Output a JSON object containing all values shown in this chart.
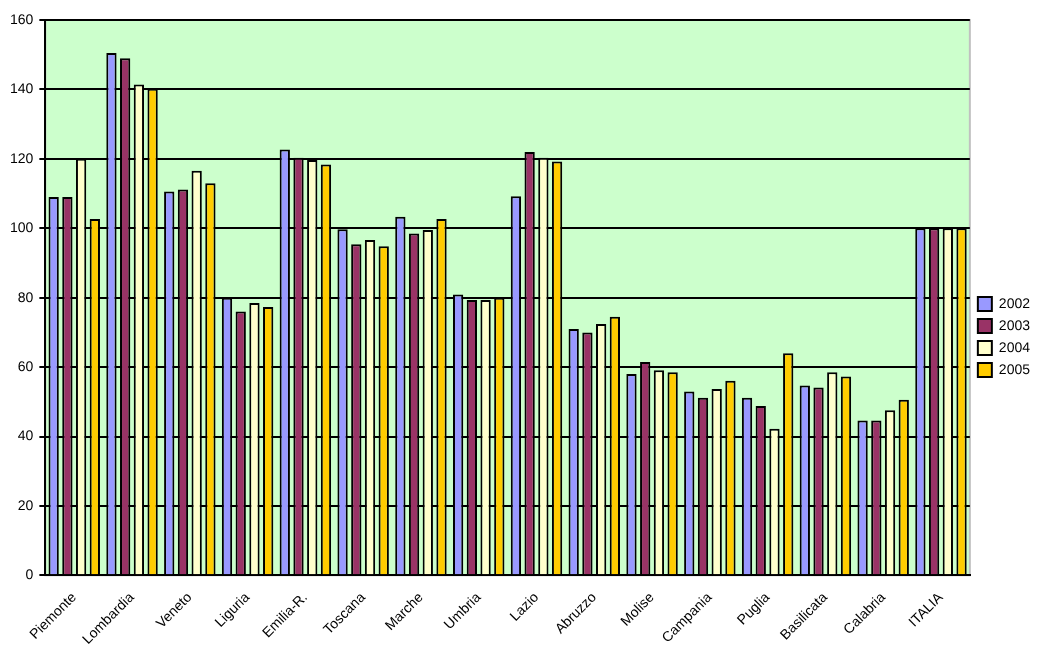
{
  "chart_data": {
    "type": "bar",
    "categories": [
      "Piemonte",
      "Lombardia",
      "Veneto",
      "Liguria",
      "Emilia-R.",
      "Toscana",
      "Marche",
      "Umbria",
      "Lazio",
      "Abruzzo",
      "Molise",
      "Campania",
      "Puglia",
      "Basilicata",
      "Calabria",
      "ITALIA"
    ],
    "series": [
      {
        "name": "2002",
        "color": "#9999ff",
        "values": [
          109,
          150.5,
          110.6,
          80,
          122.7,
          99.7,
          103.3,
          80.9,
          109.2,
          71,
          58,
          53,
          51.2,
          54.7,
          44.6,
          100
        ]
      },
      {
        "name": "2003",
        "color": "#993366",
        "values": [
          109,
          149,
          111.2,
          76,
          120.3,
          95.4,
          98.5,
          79.3,
          122,
          70,
          61.5,
          51.2,
          48.8,
          54.1,
          44.6,
          100
        ]
      },
      {
        "name": "2004",
        "color": "#ffffcc",
        "values": [
          120,
          141.4,
          116.6,
          78.5,
          119.7,
          96.6,
          99.5,
          79.3,
          120.3,
          72.4,
          59.1,
          53.7,
          42.2,
          58.5,
          47.6,
          100
        ]
      },
      {
        "name": "2005",
        "color": "#ffcc00",
        "values": [
          102.7,
          140.2,
          113,
          77.3,
          118.4,
          94.8,
          102.7,
          80,
          119.2,
          74.5,
          58.5,
          56.1,
          64,
          57.3,
          50.6,
          100
        ]
      }
    ],
    "ylim": [
      0,
      160
    ],
    "yticks": [
      0,
      20,
      40,
      60,
      80,
      100,
      120,
      140,
      160
    ],
    "grid": "y",
    "legend": "right"
  }
}
